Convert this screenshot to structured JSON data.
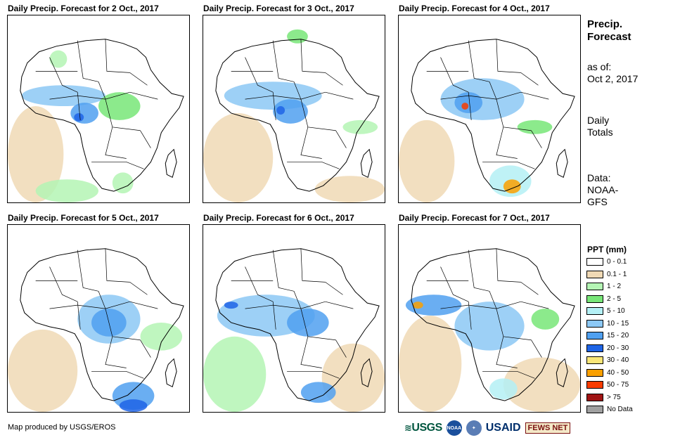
{
  "panels": [
    {
      "title": "Daily Precip. Forecast for 2 Oct., 2017"
    },
    {
      "title": "Daily Precip. Forecast for 3 Oct., 2017"
    },
    {
      "title": "Daily Precip. Forecast for 4 Oct., 2017"
    },
    {
      "title": "Daily Precip. Forecast for 5 Oct., 2017"
    },
    {
      "title": "Daily Precip. Forecast for 6 Oct., 2017"
    },
    {
      "title": "Daily Precip. Forecast for 7 Oct., 2017"
    }
  ],
  "side": {
    "title_line1": "Precip.",
    "title_line2": "Forecast",
    "asof_line1": "as of:",
    "asof_line2": "Oct 2, 2017",
    "type_line1": "Daily",
    "type_line2": "Totals",
    "data_line1": "Data:",
    "data_line2": "NOAA-",
    "data_line3": "GFS"
  },
  "legend": {
    "title": "PPT (mm)",
    "items": [
      {
        "label": "0 - 0.1",
        "color": "#ffffff"
      },
      {
        "label": "0.1 - 1",
        "color": "#f0d9b5"
      },
      {
        "label": "1 - 2",
        "color": "#b4f5b4"
      },
      {
        "label": "2 - 5",
        "color": "#78e678"
      },
      {
        "label": "5 - 10",
        "color": "#b4f0f5"
      },
      {
        "label": "10 - 15",
        "color": "#8cc8f5"
      },
      {
        "label": "15 - 20",
        "color": "#50a0f0"
      },
      {
        "label": "20 - 30",
        "color": "#1e64e6"
      },
      {
        "label": "30 - 40",
        "color": "#fae678"
      },
      {
        "label": "40 - 50",
        "color": "#faa000"
      },
      {
        "label": "50 - 75",
        "color": "#fa3c00"
      },
      {
        "label": "> 75",
        "color": "#a01414"
      },
      {
        "label": "No Data",
        "color": "#a0a0a0"
      }
    ]
  },
  "credit": "Map produced by USGS/EROS",
  "logos": {
    "usgs": "USGS",
    "noaa": "NOAA",
    "usaid": "USAID",
    "fews": "FEWS NET"
  }
}
